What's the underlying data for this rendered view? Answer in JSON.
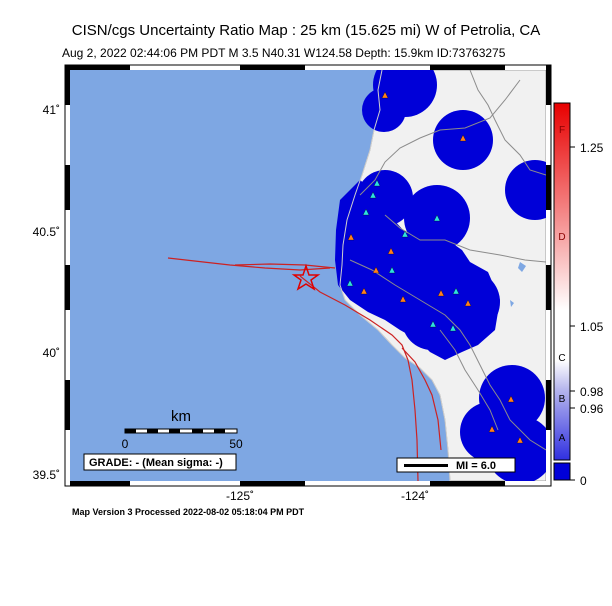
{
  "title": "CISN/cgs Uncertainty Ratio Map : 25 km (15.625 mi) W of Petrolia, CA",
  "subtitle": "Aug  2, 2022 02:44:06 PM PDT    M 3.5    N40.31 W124.58    Depth: 15.9km    ID:73763275",
  "footer": "Map Version 3 Processed 2022-08-02 05:18:04 PM PDT",
  "axes": {
    "lat_ticks": [
      "41˚",
      "40.5˚",
      "40˚",
      "39.5˚"
    ],
    "lon_ticks": [
      "-125˚",
      "-124˚"
    ]
  },
  "scale_bar": {
    "unit": "km",
    "start": "0",
    "end": "50"
  },
  "grade_label": "GRADE: - (Mean sigma: -)",
  "mi_legend": "MI = 6.0",
  "colorbar": {
    "letters": [
      "F",
      "D",
      "C",
      "B",
      "A"
    ],
    "values": [
      "1.25",
      "1.05",
      "0.98",
      "0.96",
      "0"
    ]
  },
  "colors": {
    "ocean": "#7ea7e3",
    "land": "#f1f1f1",
    "uncertainty_blue": "#0000d8",
    "fault": "#cc0000",
    "station_orange": "#ff7f1e",
    "station_cyan": "#2ee0e0",
    "epicenter": "#e00000"
  }
}
